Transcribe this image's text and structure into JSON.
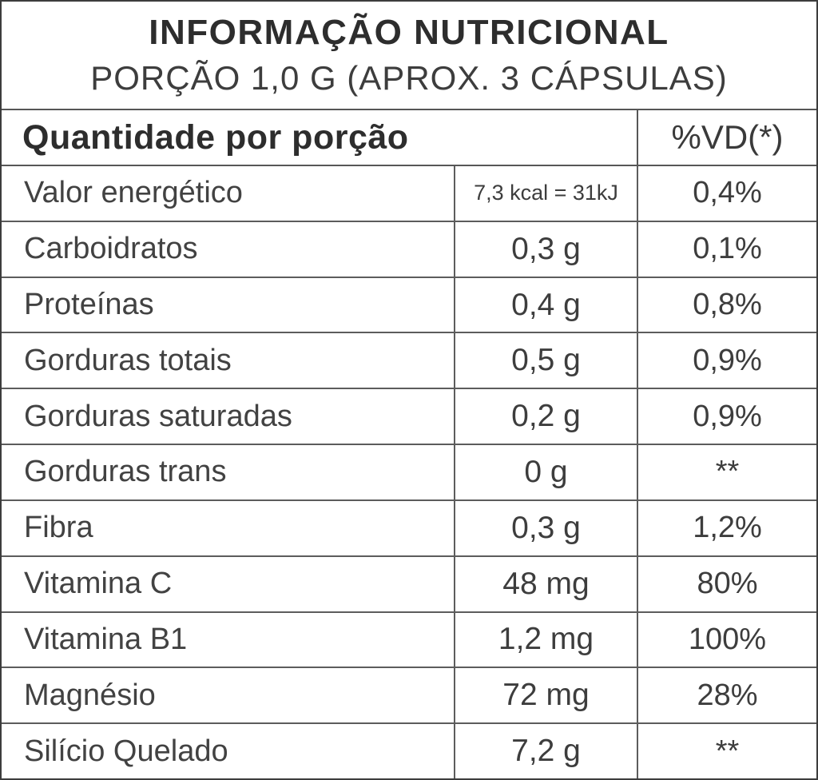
{
  "label": {
    "title": "INFORMAÇÃO NUTRICIONAL",
    "subtitle": "PORÇÃO 1,0 G (APROX. 3 CÁPSULAS)",
    "header": {
      "quantity": "Quantidade por porção",
      "dv": "%VD(*)"
    },
    "rows": [
      {
        "name": "Valor energético",
        "amount": "7,3 kcal = 31kJ",
        "dv": "0,4%"
      },
      {
        "name": "Carboidratos",
        "amount": "0,3 g",
        "dv": "0,1%"
      },
      {
        "name": "Proteínas",
        "amount": "0,4 g",
        "dv": "0,8%"
      },
      {
        "name": "Gorduras totais",
        "amount": "0,5 g",
        "dv": "0,9%"
      },
      {
        "name": "Gorduras saturadas",
        "amount": "0,2 g",
        "dv": "0,9%"
      },
      {
        "name": "Gorduras trans",
        "amount": "0 g",
        "dv": "**"
      },
      {
        "name": "Fibra",
        "amount": "0,3 g",
        "dv": "1,2%"
      },
      {
        "name": "Vitamina C",
        "amount": "48 mg",
        "dv": "80%"
      },
      {
        "name": "Vitamina B1",
        "amount": "1,2 mg",
        "dv": "100%"
      },
      {
        "name": "Magnésio",
        "amount": "72 mg",
        "dv": "28%"
      },
      {
        "name": "Silício Quelado",
        "amount": "7,2 g",
        "dv": "**"
      }
    ],
    "colors": {
      "background": "#ffffff",
      "text": "#3a3a3a",
      "border": "#565656"
    }
  }
}
